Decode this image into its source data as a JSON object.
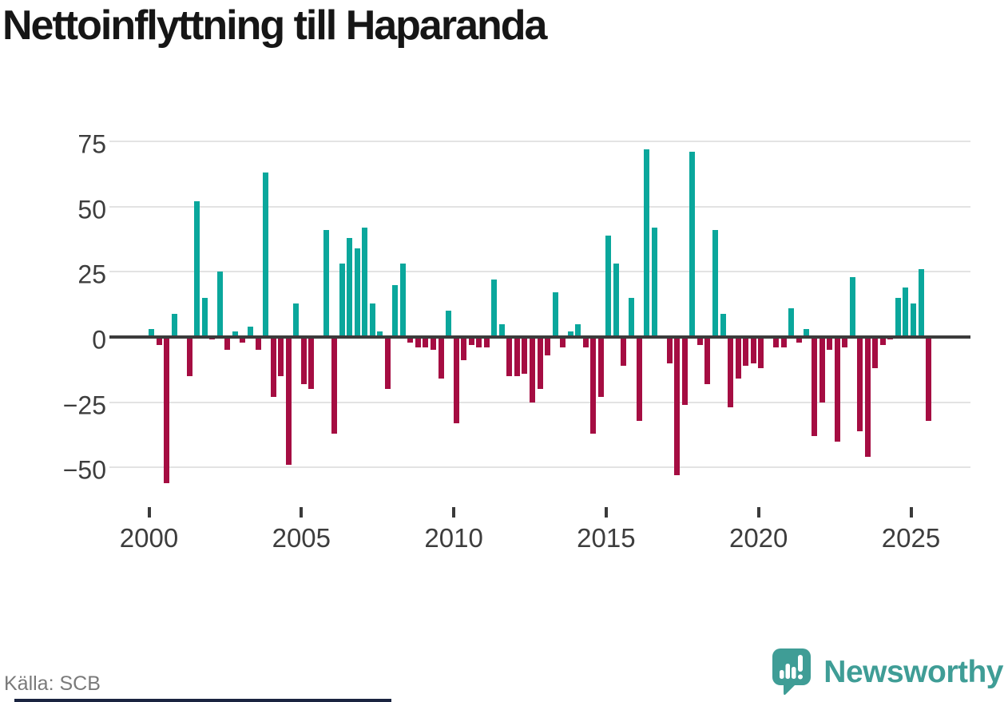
{
  "title": "Nettoinflyttning till Haparanda",
  "source": "Källa: SCB",
  "brand": {
    "name": "Newsworthy",
    "logo_icon": "bar-chart-exclamation-speech-bubble-icon",
    "color": "#3f9d96"
  },
  "colors": {
    "positive_bar": "#0aa79c",
    "negative_bar": "#a50d42",
    "gridline": "#e3e3e3",
    "zero_line": "#3b3b3b",
    "axis_text": "#3d3d3d",
    "title_text": "#161616",
    "source_text": "#7a7a7a",
    "footer_bar": "#1a2440"
  },
  "chart_data": {
    "type": "bar",
    "title": "Nettoinflyttning till Haparanda",
    "xlabel": "",
    "ylabel": "",
    "period": "quarterly",
    "start_year": 2000,
    "start_quarter": 1,
    "end_year": 2025,
    "end_quarter": 3,
    "grid": "horizontal",
    "legend": "none",
    "ylim": [
      -62,
      80
    ],
    "y_ticks": [
      75,
      50,
      25,
      0,
      -25,
      -50
    ],
    "x_tick_years": [
      2000,
      2005,
      2010,
      2015,
      2020,
      2025
    ],
    "values": [
      3,
      -3,
      -56,
      9,
      0,
      -15,
      52,
      15,
      -1,
      25,
      -5,
      2,
      -2,
      4,
      -5,
      63,
      -23,
      -15,
      -49,
      13,
      -18,
      -20,
      0,
      41,
      -37,
      28,
      38,
      34,
      42,
      13,
      2,
      -20,
      20,
      28,
      -2,
      -4,
      -4,
      -5,
      -16,
      10,
      -33,
      -9,
      -3,
      -4,
      -4,
      22,
      5,
      -15,
      -15,
      -14,
      -25,
      -20,
      -7,
      17,
      -4,
      2,
      5,
      -4,
      -37,
      -23,
      39,
      28,
      -11,
      15,
      -32,
      72,
      42,
      0,
      -10,
      -53,
      -26,
      71,
      -3,
      -18,
      41,
      9,
      -27,
      -16,
      -11,
      -10,
      -12,
      0,
      -4,
      -4,
      11,
      -2,
      3,
      -38,
      -25,
      -5,
      -40,
      -4,
      23,
      -36,
      -46,
      -12,
      -3,
      -1,
      15,
      19,
      13,
      26,
      -32
    ]
  }
}
